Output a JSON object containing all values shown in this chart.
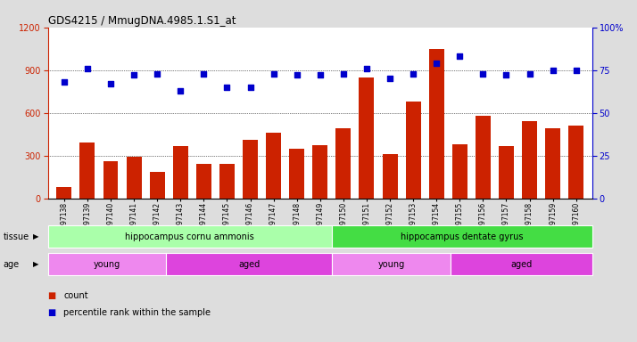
{
  "title": "GDS4215 / MmugDNA.4985.1.S1_at",
  "samples": [
    "GSM297138",
    "GSM297139",
    "GSM297140",
    "GSM297141",
    "GSM297142",
    "GSM297143",
    "GSM297144",
    "GSM297145",
    "GSM297146",
    "GSM297147",
    "GSM297148",
    "GSM297149",
    "GSM297150",
    "GSM297151",
    "GSM297152",
    "GSM297153",
    "GSM297154",
    "GSM297155",
    "GSM297156",
    "GSM297157",
    "GSM297158",
    "GSM297159",
    "GSM297160"
  ],
  "counts": [
    80,
    390,
    260,
    290,
    185,
    370,
    245,
    240,
    410,
    460,
    350,
    375,
    490,
    850,
    310,
    680,
    1050,
    380,
    580,
    370,
    540,
    490,
    510
  ],
  "percentiles": [
    68,
    76,
    67,
    72,
    73,
    63,
    73,
    65,
    65,
    73,
    72,
    72,
    73,
    76,
    70,
    73,
    79,
    83,
    73,
    72,
    73,
    75,
    75
  ],
  "bar_color": "#cc2200",
  "dot_color": "#0000cc",
  "ylim_left": [
    0,
    1200
  ],
  "ylim_right": [
    0,
    100
  ],
  "yticks_left": [
    0,
    300,
    600,
    900,
    1200
  ],
  "yticks_right": [
    0,
    25,
    50,
    75,
    100
  ],
  "grid_values": [
    300,
    600,
    900
  ],
  "tissue_groups": [
    {
      "label": "hippocampus cornu ammonis",
      "start": 0,
      "end": 12,
      "color": "#aaffaa"
    },
    {
      "label": "hippocampus dentate gyrus",
      "start": 12,
      "end": 23,
      "color": "#44dd44"
    }
  ],
  "age_groups": [
    {
      "label": "young",
      "start": 0,
      "end": 5,
      "color": "#ee88ee"
    },
    {
      "label": "aged",
      "start": 5,
      "end": 12,
      "color": "#dd44dd"
    },
    {
      "label": "young",
      "start": 12,
      "end": 17,
      "color": "#ee88ee"
    },
    {
      "label": "aged",
      "start": 17,
      "end": 23,
      "color": "#dd44dd"
    }
  ],
  "tissue_label": "tissue",
  "age_label": "age",
  "legend_count": "count",
  "legend_pct": "percentile rank within the sample",
  "bg_color": "#dddddd",
  "plot_bg": "#ffffff"
}
